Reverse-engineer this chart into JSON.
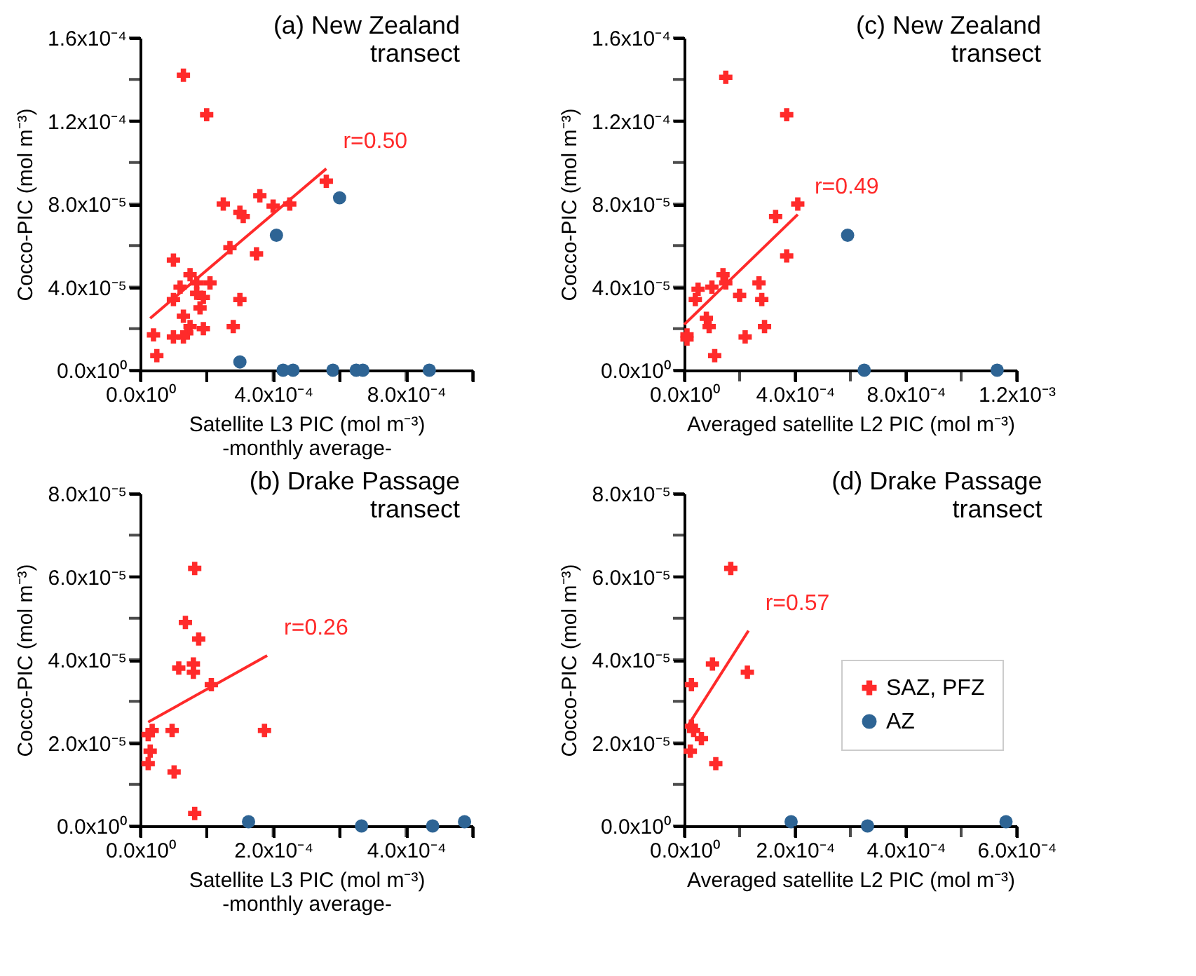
{
  "chart_data": [
    {
      "type": "scatter",
      "title": "(a) New Zealand\ntransect",
      "xlabel": "Satellite L3 PIC (mol m⁻³)\n-monthly average-",
      "ylabel": "Cocco-PIC (mol m⁻³)",
      "xlim": [
        0,
        0.001
      ],
      "ylim": [
        0,
        0.00016
      ],
      "xticks": [
        {
          "value": 0,
          "label": "0.0x10⁰"
        },
        {
          "value": 0.0002,
          "label": null
        },
        {
          "value": 0.0004,
          "label": "4.0x10⁻⁴"
        },
        {
          "value": 0.0006,
          "label": null
        },
        {
          "value": 0.0008,
          "label": "8.0x10⁻⁴"
        },
        {
          "value": 0.001,
          "label": null
        }
      ],
      "yticks": [
        {
          "value": 0,
          "label": "0.0x10⁰"
        },
        {
          "value": 2e-05,
          "label": null
        },
        {
          "value": 4e-05,
          "label": "4.0x10⁻⁵"
        },
        {
          "value": 6e-05,
          "label": null
        },
        {
          "value": 8e-05,
          "label": "8.0x10⁻⁵"
        },
        {
          "value": 0.0001,
          "label": null
        },
        {
          "value": 0.00012,
          "label": "1.2x10⁻⁴"
        },
        {
          "value": 0.00014,
          "label": null
        },
        {
          "value": 0.00016,
          "label": "1.6x10⁻⁴"
        }
      ],
      "series": [
        {
          "color": "#ff2a2a",
          "marker": "cross",
          "x": [
            0.00013,
            0.0002,
            4e-05,
            5e-05,
            0.0001,
            0.0001,
            0.00012,
            0.00013,
            0.0001,
            0.00013,
            0.00014,
            0.00015,
            0.00015,
            0.00017,
            0.00017,
            0.00018,
            0.00019,
            0.00019,
            0.00021,
            0.00025,
            0.00027,
            0.00028,
            0.0003,
            0.0003,
            0.00031,
            0.00035,
            0.00036,
            0.0004,
            0.00045,
            0.00056
          ],
          "values": [
            0.000142,
            0.000123,
            1.7e-05,
            7e-06,
            5.3e-05,
            3.4e-05,
            4e-05,
            2.6e-05,
            1.6e-05,
            1.6e-05,
            1.8e-05,
            4.6e-05,
            2.1e-05,
            4.2e-05,
            3.7e-05,
            3e-05,
            2e-05,
            3.5e-05,
            4.2e-05,
            8e-05,
            5.9e-05,
            2.1e-05,
            3.4e-05,
            7.6e-05,
            7.4e-05,
            5.6e-05,
            8.4e-05,
            7.9e-05,
            8e-05,
            9.1e-05
          ]
        },
        {
          "color": "#2e6494",
          "marker": "circle",
          "x": [
            0.0003,
            0.00041,
            0.00043,
            0.00046,
            0.00058,
            0.0006,
            0.00065,
            0.00067,
            0.00087
          ],
          "values": [
            4e-06,
            6.5e-05,
            0,
            0,
            0,
            8.3e-05,
            0,
            0,
            0
          ]
        },
        {
          "type": "line",
          "color": "#ff2a2a",
          "x": [
            3e-05,
            0.00056
          ],
          "values": [
            2.5e-05,
            9.7e-05
          ]
        }
      ],
      "annotations": [
        "r=0.50"
      ]
    },
    {
      "type": "scatter",
      "title": "(c) New Zealand\ntransect",
      "xlabel": "Averaged satellite L2 PIC (mol m⁻³)",
      "ylabel": "Cocco-PIC (mol m⁻³)",
      "xlim": [
        0,
        0.0012
      ],
      "ylim": [
        0,
        0.00016
      ],
      "xticks": [
        {
          "value": 0,
          "label": "0.0x10⁰"
        },
        {
          "value": 0.0002,
          "label": null
        },
        {
          "value": 0.0004,
          "label": "4.0x10⁻⁴"
        },
        {
          "value": 0.0006,
          "label": null
        },
        {
          "value": 0.0008,
          "label": "8.0x10⁻⁴"
        },
        {
          "value": 0.001,
          "label": null
        },
        {
          "value": 0.0012,
          "label": "1.2x10⁻³"
        }
      ],
      "yticks": [
        {
          "value": 0,
          "label": "0.0x10⁰"
        },
        {
          "value": 2e-05,
          "label": null
        },
        {
          "value": 4e-05,
          "label": "4.0x10⁻⁵"
        },
        {
          "value": 6e-05,
          "label": null
        },
        {
          "value": 8e-05,
          "label": "8.0x10⁻⁵"
        },
        {
          "value": 0.0001,
          "label": null
        },
        {
          "value": 0.00012,
          "label": "1.2x10⁻⁴"
        },
        {
          "value": 0.00014,
          "label": null
        },
        {
          "value": 0.00016,
          "label": "1.6x10⁻⁴"
        }
      ],
      "series": [
        {
          "color": "#ff2a2a",
          "marker": "cross",
          "x": [
            0.00015,
            0.00037,
            0.00041,
            0.00033,
            0.00037,
            0.00014,
            0.00015,
            5e-05,
            4e-05,
            0.0001,
            0.0002,
            0.00027,
            0.00028,
            8e-05,
            9e-05,
            0.00029,
            0.00022,
            1e-05,
            1e-05,
            0.00011
          ],
          "values": [
            0.000141,
            0.000123,
            8e-05,
            7.4e-05,
            5.5e-05,
            4.6e-05,
            4.2e-05,
            3.9e-05,
            3.4e-05,
            4e-05,
            3.6e-05,
            4.2e-05,
            3.4e-05,
            2.5e-05,
            2.1e-05,
            2.1e-05,
            1.6e-05,
            1.7e-05,
            1.5e-05,
            7e-06
          ]
        },
        {
          "color": "#2e6494",
          "marker": "circle",
          "x": [
            0.00059,
            0.00065,
            0.00113
          ],
          "values": [
            6.5e-05,
            0,
            0
          ]
        },
        {
          "type": "line",
          "color": "#ff2a2a",
          "x": [
            0,
            0.00041
          ],
          "values": [
            2.2e-05,
            7.5e-05
          ]
        }
      ],
      "annotations": [
        "r=0.49"
      ]
    },
    {
      "type": "scatter",
      "title": "(b) Drake Passage\ntransect",
      "xlabel": "Satellite L3 PIC (mol m⁻³)\n-monthly average-",
      "ylabel": "Cocco-PIC (mol m⁻³)",
      "xlim": [
        0,
        0.0005
      ],
      "ylim": [
        0,
        8e-05
      ],
      "xticks": [
        {
          "value": 0,
          "label": "0.0x10⁰"
        },
        {
          "value": 0.0001,
          "label": null
        },
        {
          "value": 0.0002,
          "label": "2.0x10⁻⁴"
        },
        {
          "value": 0.0003,
          "label": null
        },
        {
          "value": 0.0004,
          "label": "4.0x10⁻⁴"
        },
        {
          "value": 0.0005,
          "label": null
        }
      ],
      "yticks": [
        {
          "value": 0,
          "label": "0.0x10⁰"
        },
        {
          "value": 1e-05,
          "label": null
        },
        {
          "value": 2e-05,
          "label": "2.0x10⁻⁵"
        },
        {
          "value": 3e-05,
          "label": null
        },
        {
          "value": 4e-05,
          "label": "4.0x10⁻⁵"
        },
        {
          "value": 5e-05,
          "label": null
        },
        {
          "value": 6e-05,
          "label": "6.0x10⁻⁵"
        },
        {
          "value": 7e-05,
          "label": null
        },
        {
          "value": 8e-05,
          "label": "8.0x10⁻⁵"
        }
      ],
      "series": [
        {
          "color": "#ff2a2a",
          "marker": "cross",
          "x": [
            8.2e-05,
            6.8e-05,
            8.8e-05,
            5.8e-05,
            8e-05,
            8e-05,
            0.000107,
            1.8e-05,
            1.2e-05,
            4.8e-05,
            1.5e-05,
            1.2e-05,
            5.1e-05,
            0.000187,
            8.2e-05
          ],
          "values": [
            6.2e-05,
            4.9e-05,
            4.5e-05,
            3.8e-05,
            3.9e-05,
            3.7e-05,
            3.4e-05,
            2.3e-05,
            2.2e-05,
            2.3e-05,
            1.8e-05,
            1.5e-05,
            1.3e-05,
            2.3e-05,
            3e-06
          ]
        },
        {
          "color": "#2e6494",
          "marker": "circle",
          "x": [
            0.000163,
            0.000333,
            0.00044,
            0.000488
          ],
          "values": [
            1e-06,
            0,
            0,
            1e-06
          ]
        },
        {
          "type": "line",
          "color": "#ff2a2a",
          "x": [
            1.2e-05,
            0.000191
          ],
          "values": [
            2.5e-05,
            4.1e-05
          ]
        }
      ],
      "annotations": [
        "r=0.26"
      ]
    },
    {
      "type": "scatter",
      "title": "(d) Drake Passage\ntransect",
      "xlabel": "Averaged satellite L2 PIC (mol m⁻³)",
      "ylabel": "Cocco-PIC (mol m⁻³)",
      "xlim": [
        0,
        0.0006
      ],
      "ylim": [
        0,
        8e-05
      ],
      "xticks": [
        {
          "value": 0,
          "label": "0.0x10⁰"
        },
        {
          "value": 0.0001,
          "label": null
        },
        {
          "value": 0.0002,
          "label": "2.0x10⁻⁴"
        },
        {
          "value": 0.0003,
          "label": null
        },
        {
          "value": 0.0004,
          "label": "4.0x10⁻⁴"
        },
        {
          "value": 0.0005,
          "label": null
        },
        {
          "value": 0.0006,
          "label": "6.0x10⁻⁴"
        }
      ],
      "yticks": [
        {
          "value": 0,
          "label": "0.0x10⁰"
        },
        {
          "value": 1e-05,
          "label": null
        },
        {
          "value": 2e-05,
          "label": "2.0x10⁻⁵"
        },
        {
          "value": 3e-05,
          "label": null
        },
        {
          "value": 4e-05,
          "label": "4.0x10⁻⁵"
        },
        {
          "value": 5e-05,
          "label": null
        },
        {
          "value": 6e-05,
          "label": "6.0x10⁻⁵"
        },
        {
          "value": 7e-05,
          "label": null
        },
        {
          "value": 8e-05,
          "label": "8.0x10⁻⁵"
        }
      ],
      "legend": "right",
      "series": [
        {
          "name": "SAZ, PFZ",
          "color": "#ff2a2a",
          "marker": "cross",
          "x": [
            8.4e-05,
            5.1e-05,
            0.000114,
            1.3e-05,
            1.3e-05,
            1.7e-05,
            3.1e-05,
            1.1e-05,
            5.7e-05
          ],
          "values": [
            6.2e-05,
            3.9e-05,
            3.7e-05,
            3.4e-05,
            2.4e-05,
            2.3e-05,
            2.1e-05,
            1.8e-05,
            1.5e-05
          ]
        },
        {
          "name": "AZ",
          "color": "#2e6494",
          "marker": "circle",
          "x": [
            0.000193,
            0.000331,
            0.000581
          ],
          "values": [
            1e-06,
            0,
            1e-06
          ]
        },
        {
          "type": "line",
          "color": "#ff2a2a",
          "x": [
            6e-06,
            0.000116
          ],
          "values": [
            2.4e-05,
            4.7e-05
          ]
        }
      ],
      "annotations": [
        "r=0.57"
      ]
    }
  ]
}
